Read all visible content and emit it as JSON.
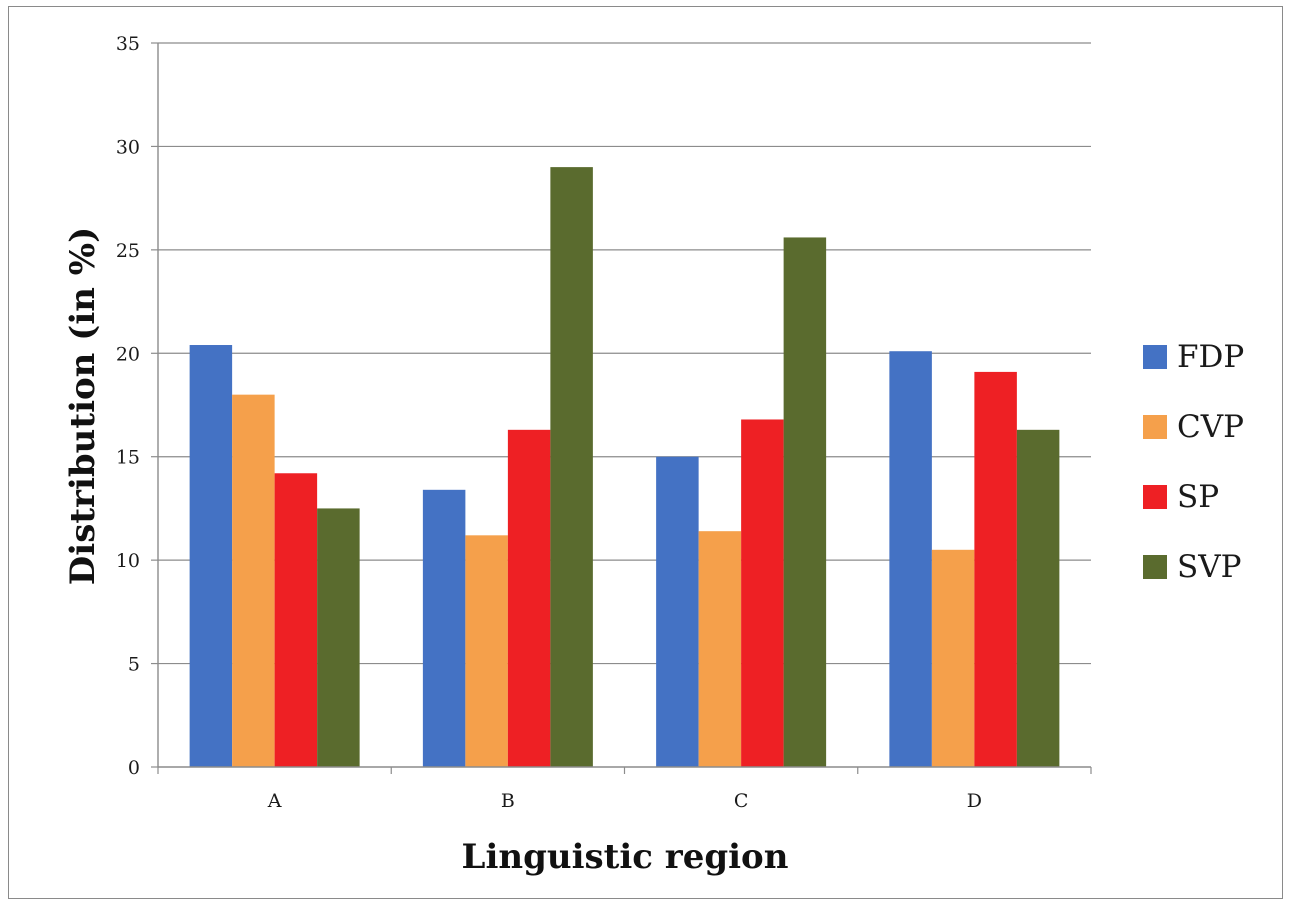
{
  "chart_data": {
    "type": "bar",
    "title": "",
    "xlabel": "Linguistic region",
    "ylabel": "Distribution (in %)",
    "categories": [
      "A",
      "B",
      "C",
      "D"
    ],
    "ylim": [
      0,
      35
    ],
    "yticks": [
      0,
      5,
      10,
      15,
      20,
      25,
      30,
      35
    ],
    "ytick_labels": [
      "0",
      "5",
      "10",
      "15",
      "20",
      "25",
      "30",
      "35"
    ],
    "grid": true,
    "legend_position": "right",
    "series": [
      {
        "name": "FDP",
        "color": "#4472c4",
        "values": [
          20.4,
          13.4,
          15.0,
          20.1
        ]
      },
      {
        "name": "CVP",
        "color": "#f5a04b",
        "values": [
          18.0,
          11.2,
          11.4,
          10.5
        ]
      },
      {
        "name": "SP",
        "color": "#ee2024",
        "values": [
          14.2,
          16.3,
          16.8,
          19.1
        ]
      },
      {
        "name": "SVP",
        "color": "#5a6b2e",
        "values": [
          12.5,
          29.0,
          25.6,
          16.3
        ]
      }
    ]
  }
}
